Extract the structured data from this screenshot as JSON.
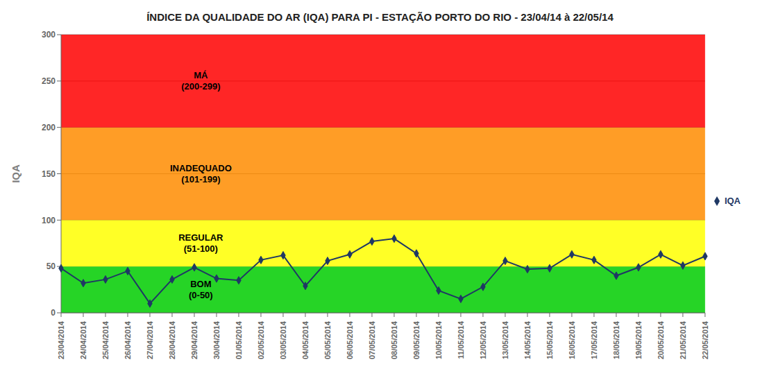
{
  "chart_data": {
    "type": "line",
    "title": "ÍNDICE DA QUALIDADE DO AR (IQA) PARA PI - ESTAÇÃO PORTO DO RIO - 23/04/14 à 22/05/14",
    "y_label": "IQA",
    "categories": [
      "23/04/2014",
      "24/04/2014",
      "25/04/2014",
      "26/04/2014",
      "27/04/2014",
      "28/04/2014",
      "29/04/2014",
      "30/04/2014",
      "01/05/2014",
      "02/05/2014",
      "03/05/2014",
      "04/05/2014",
      "05/05/2014",
      "06/05/2014",
      "07/05/2014",
      "08/05/2014",
      "09/05/2014",
      "10/05/2014",
      "11/05/2014",
      "12/05/2014",
      "13/05/2014",
      "14/05/2014",
      "15/05/2014",
      "16/05/2014",
      "17/05/2014",
      "18/05/2014",
      "19/05/2014",
      "20/05/2014",
      "21/05/2014",
      "22/05/2014"
    ],
    "series": [
      {
        "name": "IQA",
        "color": "#1F3864",
        "marker": "diamond",
        "values": [
          48,
          32,
          36,
          45,
          10,
          36,
          49,
          37,
          35,
          57,
          62,
          29,
          56,
          63,
          77,
          80,
          64,
          24,
          15,
          28,
          56,
          47,
          48,
          63,
          57,
          40,
          49,
          63,
          51,
          61
        ]
      }
    ],
    "ylim": [
      0,
      300
    ],
    "yticks": [
      0,
      50,
      100,
      150,
      200,
      250,
      300
    ],
    "grid": true,
    "legend": "right",
    "zones": [
      {
        "ymin": 0,
        "ymax": 50,
        "color": "#00CC00",
        "labels": [
          "BOM",
          "(0-50)"
        ]
      },
      {
        "ymin": 50,
        "ymax": 100,
        "color": "#FFFF00",
        "labels": [
          "REGULAR",
          "(51-100)"
        ]
      },
      {
        "ymin": 100,
        "ymax": 200,
        "color": "#FF8C00",
        "labels": [
          "INADEQUADO",
          "(101-199)"
        ]
      },
      {
        "ymin": 200,
        "ymax": 300,
        "color": "#FF0000",
        "labels": [
          "MÁ",
          "(200-299)"
        ]
      }
    ]
  }
}
